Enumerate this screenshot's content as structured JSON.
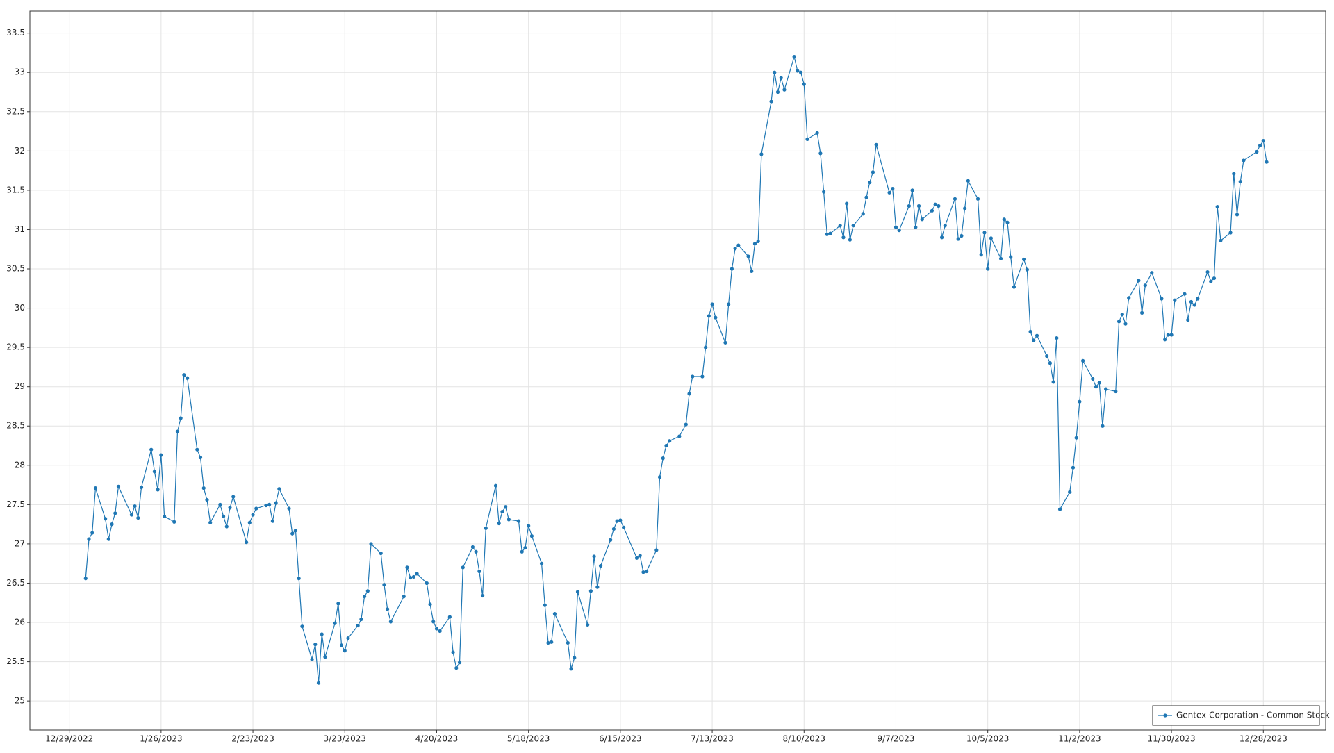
{
  "chart_data": {
    "type": "line",
    "x": [
      "1/3/2023",
      "1/4/2023",
      "1/5/2023",
      "1/6/2023",
      "1/9/2023",
      "1/10/2023",
      "1/11/2023",
      "1/12/2023",
      "1/13/2023",
      "1/17/2023",
      "1/18/2023",
      "1/19/2023",
      "1/20/2023",
      "1/23/2023",
      "1/24/2023",
      "1/25/2023",
      "1/26/2023",
      "1/27/2023",
      "1/30/2023",
      "1/31/2023",
      "2/1/2023",
      "2/2/2023",
      "2/3/2023",
      "2/6/2023",
      "2/7/2023",
      "2/8/2023",
      "2/9/2023",
      "2/10/2023",
      "2/13/2023",
      "2/14/2023",
      "2/15/2023",
      "2/16/2023",
      "2/17/2023",
      "2/21/2023",
      "2/22/2023",
      "2/23/2023",
      "2/24/2023",
      "2/27/2023",
      "2/28/2023",
      "3/1/2023",
      "3/2/2023",
      "3/3/2023",
      "3/6/2023",
      "3/7/2023",
      "3/8/2023",
      "3/9/2023",
      "3/10/2023",
      "3/13/2023",
      "3/14/2023",
      "3/15/2023",
      "3/16/2023",
      "3/17/2023",
      "3/20/2023",
      "3/21/2023",
      "3/22/2023",
      "3/23/2023",
      "3/24/2023",
      "3/27/2023",
      "3/28/2023",
      "3/29/2023",
      "3/30/2023",
      "3/31/2023",
      "4/3/2023",
      "4/4/2023",
      "4/5/2023",
      "4/6/2023",
      "4/10/2023",
      "4/11/2023",
      "4/12/2023",
      "4/13/2023",
      "4/14/2023",
      "4/17/2023",
      "4/18/2023",
      "4/19/2023",
      "4/20/2023",
      "4/21/2023",
      "4/24/2023",
      "4/25/2023",
      "4/26/2023",
      "4/27/2023",
      "4/28/2023",
      "5/1/2023",
      "5/2/2023",
      "5/3/2023",
      "5/4/2023",
      "5/5/2023",
      "5/8/2023",
      "5/9/2023",
      "5/10/2023",
      "5/11/2023",
      "5/12/2023",
      "5/15/2023",
      "5/16/2023",
      "5/17/2023",
      "5/18/2023",
      "5/19/2023",
      "5/22/2023",
      "5/23/2023",
      "5/24/2023",
      "5/25/2023",
      "5/26/2023",
      "5/30/2023",
      "5/31/2023",
      "6/1/2023",
      "6/2/2023",
      "6/5/2023",
      "6/6/2023",
      "6/7/2023",
      "6/8/2023",
      "6/9/2023",
      "6/12/2023",
      "6/13/2023",
      "6/14/2023",
      "6/15/2023",
      "6/16/2023",
      "6/20/2023",
      "6/21/2023",
      "6/22/2023",
      "6/23/2023",
      "6/26/2023",
      "6/27/2023",
      "6/28/2023",
      "6/29/2023",
      "6/30/2023",
      "7/3/2023",
      "7/5/2023",
      "7/6/2023",
      "7/7/2023",
      "7/10/2023",
      "7/11/2023",
      "7/12/2023",
      "7/13/2023",
      "7/14/2023",
      "7/17/2023",
      "7/18/2023",
      "7/19/2023",
      "7/20/2023",
      "7/21/2023",
      "7/24/2023",
      "7/25/2023",
      "7/26/2023",
      "7/27/2023",
      "7/28/2023",
      "7/31/2023",
      "8/1/2023",
      "8/2/2023",
      "8/3/2023",
      "8/4/2023",
      "8/7/2023",
      "8/8/2023",
      "8/9/2023",
      "8/10/2023",
      "8/11/2023",
      "8/14/2023",
      "8/15/2023",
      "8/16/2023",
      "8/17/2023",
      "8/18/2023",
      "8/21/2023",
      "8/22/2023",
      "8/23/2023",
      "8/24/2023",
      "8/25/2023",
      "8/28/2023",
      "8/29/2023",
      "8/30/2023",
      "8/31/2023",
      "9/1/2023",
      "9/5/2023",
      "9/6/2023",
      "9/7/2023",
      "9/8/2023",
      "9/11/2023",
      "9/12/2023",
      "9/13/2023",
      "9/14/2023",
      "9/15/2023",
      "9/18/2023",
      "9/19/2023",
      "9/20/2023",
      "9/21/2023",
      "9/22/2023",
      "9/25/2023",
      "9/26/2023",
      "9/27/2023",
      "9/28/2023",
      "9/29/2023",
      "10/2/2023",
      "10/3/2023",
      "10/4/2023",
      "10/5/2023",
      "10/6/2023",
      "10/9/2023",
      "10/10/2023",
      "10/11/2023",
      "10/12/2023",
      "10/13/2023",
      "10/16/2023",
      "10/17/2023",
      "10/18/2023",
      "10/19/2023",
      "10/20/2023",
      "10/23/2023",
      "10/24/2023",
      "10/25/2023",
      "10/26/2023",
      "10/27/2023",
      "10/30/2023",
      "10/31/2023",
      "11/1/2023",
      "11/2/2023",
      "11/3/2023",
      "11/6/2023",
      "11/7/2023",
      "11/8/2023",
      "11/9/2023",
      "11/10/2023",
      "11/13/2023",
      "11/14/2023",
      "11/15/2023",
      "11/16/2023",
      "11/17/2023",
      "11/20/2023",
      "11/21/2023",
      "11/22/2023",
      "11/24/2023",
      "11/27/2023",
      "11/28/2023",
      "11/29/2023",
      "11/30/2023",
      "12/1/2023",
      "12/4/2023",
      "12/5/2023",
      "12/6/2023",
      "12/7/2023",
      "12/8/2023",
      "12/11/2023",
      "12/12/2023",
      "12/13/2023",
      "12/14/2023",
      "12/15/2023",
      "12/18/2023",
      "12/19/2023",
      "12/20/2023",
      "12/21/2023",
      "12/22/2023",
      "12/26/2023",
      "12/27/2023",
      "12/28/2023",
      "12/29/2023"
    ],
    "series": [
      {
        "name": "Gentex Corporation - Common Stock",
        "color": "#1f77b4",
        "values": [
          26.56,
          27.06,
          27.14,
          27.71,
          27.32,
          27.06,
          27.25,
          27.39,
          27.73,
          27.37,
          27.48,
          27.33,
          27.72,
          28.2,
          27.92,
          27.69,
          28.13,
          27.35,
          27.28,
          28.43,
          28.6,
          29.15,
          29.11,
          28.2,
          28.1,
          27.71,
          27.56,
          27.27,
          27.5,
          27.35,
          27.22,
          27.46,
          27.6,
          27.02,
          27.27,
          27.37,
          27.45,
          27.49,
          27.5,
          27.29,
          27.52,
          27.7,
          27.45,
          27.13,
          27.17,
          26.56,
          25.95,
          25.53,
          25.72,
          25.23,
          25.85,
          25.56,
          25.99,
          26.24,
          25.71,
          25.64,
          25.8,
          25.96,
          26.04,
          26.33,
          26.4,
          27.0,
          26.88,
          26.48,
          26.17,
          26.01,
          26.33,
          26.7,
          26.57,
          26.58,
          26.62,
          26.5,
          26.23,
          26.01,
          25.92,
          25.89,
          26.07,
          25.62,
          25.42,
          25.49,
          26.7,
          26.96,
          26.9,
          26.65,
          26.34,
          27.2,
          27.74,
          27.26,
          27.41,
          27.47,
          27.31,
          27.29,
          26.9,
          26.95,
          27.23,
          27.1,
          26.75,
          26.22,
          25.74,
          25.75,
          26.11,
          25.74,
          25.41,
          25.55,
          26.39,
          25.97,
          26.4,
          26.84,
          26.45,
          26.72,
          27.05,
          27.19,
          27.29,
          27.3,
          27.21,
          26.82,
          26.85,
          26.64,
          26.65,
          26.92,
          27.85,
          28.09,
          28.25,
          28.31,
          28.37,
          28.52,
          28.91,
          29.13,
          29.13,
          29.5,
          29.9,
          30.05,
          29.88,
          29.56,
          30.05,
          30.5,
          30.76,
          30.8,
          30.66,
          30.47,
          30.82,
          30.85,
          31.96,
          32.63,
          33.0,
          32.75,
          32.93,
          32.78,
          33.2,
          33.02,
          33.0,
          32.85,
          32.15,
          32.23,
          31.97,
          31.48,
          30.94,
          30.95,
          31.05,
          30.9,
          31.33,
          30.87,
          31.05,
          31.2,
          31.41,
          31.6,
          31.73,
          32.08,
          31.47,
          31.52,
          31.03,
          30.99,
          31.3,
          31.5,
          31.03,
          31.3,
          31.13,
          31.24,
          31.32,
          31.3,
          30.9,
          31.05,
          31.39,
          30.88,
          30.92,
          31.27,
          31.62,
          31.39,
          30.68,
          30.96,
          30.5,
          30.89,
          30.63,
          31.13,
          31.09,
          30.65,
          30.27,
          30.62,
          30.49,
          29.7,
          29.59,
          29.65,
          29.39,
          29.3,
          29.06,
          29.62,
          27.44,
          27.66,
          27.97,
          28.35,
          28.81,
          29.33,
          29.1,
          29.0,
          29.05,
          28.5,
          28.97,
          28.94,
          29.83,
          29.92,
          29.8,
          30.13,
          30.35,
          29.94,
          30.29,
          30.45,
          30.12,
          29.6,
          29.66,
          29.66,
          30.1,
          30.18,
          29.85,
          30.08,
          30.04,
          30.12,
          30.46,
          30.34,
          30.38,
          31.29,
          30.86,
          30.96,
          31.71,
          31.19,
          31.61,
          31.88,
          31.99,
          32.07,
          32.13,
          31.86
        ]
      }
    ],
    "xlim": [
      "12/17/2022",
      "1/16/2024"
    ],
    "xticks": [
      "12/29/2022",
      "1/26/2023",
      "2/23/2023",
      "3/23/2023",
      "4/20/2023",
      "5/18/2023",
      "6/15/2023",
      "7/13/2023",
      "8/10/2023",
      "9/7/2023",
      "10/5/2023",
      "11/2/2023",
      "11/30/2023",
      "12/28/2023"
    ],
    "ylim": [
      24.63,
      33.78
    ],
    "yticks": [
      25,
      25.5,
      26,
      26.5,
      27,
      27.5,
      28,
      28.5,
      29,
      29.5,
      30,
      30.5,
      31,
      31.5,
      32,
      32.5,
      33,
      33.5
    ],
    "grid": true,
    "legend": "lower right"
  }
}
